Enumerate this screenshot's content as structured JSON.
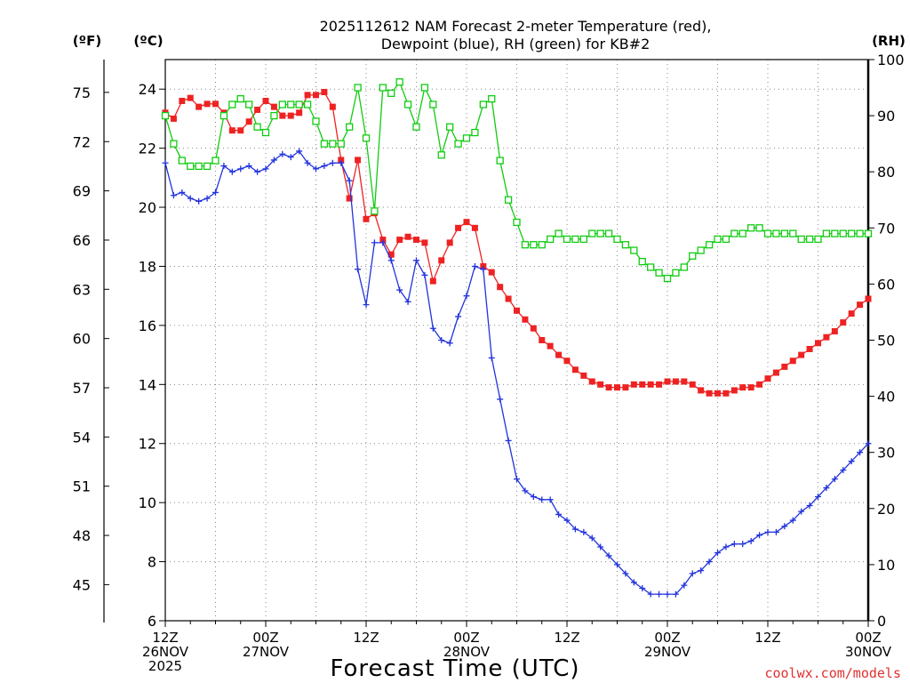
{
  "chart_data": {
    "type": "line",
    "title_line1": "2025112612 NAM Forecast 2-meter Temperature (red),",
    "title_line2": "Dewpoint (blue), RH (green) for KB#2",
    "xlabel": "Forecast Time (UTC)",
    "watermark": "coolwx.com/models",
    "units": {
      "f": "(ºF)",
      "c": "(ºC)",
      "rh": "(RH)"
    },
    "x_hours_range": [
      0,
      84
    ],
    "x_ticks": [
      {
        "h": 0,
        "l1": "12Z",
        "l2": "26NOV",
        "l3": "2025"
      },
      {
        "h": 12,
        "l1": "00Z",
        "l2": "27NOV",
        "l3": ""
      },
      {
        "h": 24,
        "l1": "12Z",
        "l2": "",
        "l3": ""
      },
      {
        "h": 36,
        "l1": "00Z",
        "l2": "28NOV",
        "l3": ""
      },
      {
        "h": 48,
        "l1": "12Z",
        "l2": "",
        "l3": ""
      },
      {
        "h": 60,
        "l1": "00Z",
        "l2": "29NOV",
        "l3": ""
      },
      {
        "h": 72,
        "l1": "12Z",
        "l2": "",
        "l3": ""
      },
      {
        "h": 84,
        "l1": "00Z",
        "l2": "30NOV",
        "l3": ""
      }
    ],
    "c_range": [
      6,
      25
    ],
    "c_ticks": [
      6,
      8,
      10,
      12,
      14,
      16,
      18,
      20,
      22,
      24
    ],
    "f_ticks": [
      45,
      48,
      51,
      54,
      57,
      60,
      63,
      66,
      69,
      72,
      75
    ],
    "rh_range": [
      0,
      100
    ],
    "rh_ticks": [
      0,
      10,
      20,
      30,
      40,
      50,
      60,
      70,
      80,
      90,
      100
    ],
    "colors": {
      "temp": "#ee2222",
      "dew": "#2233dd",
      "rh": "#11cc11",
      "grid": "#888888"
    },
    "series": [
      {
        "name": "Temperature",
        "unit": "C",
        "marker": "square-filled",
        "x": [
          0,
          1,
          2,
          3,
          4,
          5,
          6,
          7,
          8,
          9,
          10,
          11,
          12,
          13,
          14,
          15,
          16,
          17,
          18,
          19,
          20,
          21,
          22,
          23,
          24,
          25,
          26,
          27,
          28,
          29,
          30,
          31,
          32,
          33,
          34,
          35,
          36,
          37,
          38,
          39,
          40,
          41,
          42,
          43,
          44,
          45,
          46,
          47,
          48,
          49,
          50,
          51,
          52,
          53,
          54,
          55,
          56,
          57,
          58,
          59,
          60,
          61,
          62,
          63,
          64,
          65,
          66,
          67,
          68,
          69,
          70,
          71,
          72,
          73,
          74,
          75,
          76,
          77,
          78,
          79,
          80,
          81,
          82,
          83,
          84
        ],
        "values": [
          23.2,
          23.0,
          23.6,
          23.7,
          23.4,
          23.5,
          23.5,
          23.2,
          22.6,
          22.6,
          22.9,
          23.3,
          23.6,
          23.4,
          23.1,
          23.1,
          23.2,
          23.8,
          23.8,
          23.9,
          23.4,
          21.6,
          20.3,
          21.6,
          19.6,
          19.8,
          18.9,
          18.4,
          18.9,
          19.0,
          18.9,
          18.8,
          17.5,
          18.2,
          18.8,
          19.3,
          19.5,
          19.3,
          18.0,
          17.8,
          17.3,
          16.9,
          16.5,
          16.2,
          15.9,
          15.5,
          15.3,
          15.0,
          14.8,
          14.5,
          14.3,
          14.1,
          14.0,
          13.9,
          13.9,
          13.9,
          14.0,
          14.0,
          14.0,
          14.0,
          14.1,
          14.1,
          14.1,
          14.0,
          13.8,
          13.7,
          13.7,
          13.7,
          13.8,
          13.9,
          13.9,
          14.0,
          14.2,
          14.4,
          14.6,
          14.8,
          15.0,
          15.2,
          15.4,
          15.6,
          15.8,
          16.1,
          16.4,
          16.7,
          16.9
        ]
      },
      {
        "name": "Dewpoint",
        "unit": "C",
        "marker": "plus",
        "x": [
          0,
          1,
          2,
          3,
          4,
          5,
          6,
          7,
          8,
          9,
          10,
          11,
          12,
          13,
          14,
          15,
          16,
          17,
          18,
          19,
          20,
          21,
          22,
          23,
          24,
          25,
          26,
          27,
          28,
          29,
          30,
          31,
          32,
          33,
          34,
          35,
          36,
          37,
          38,
          39,
          40,
          41,
          42,
          43,
          44,
          45,
          46,
          47,
          48,
          49,
          50,
          51,
          52,
          53,
          54,
          55,
          56,
          57,
          58,
          59,
          60,
          61,
          62,
          63,
          64,
          65,
          66,
          67,
          68,
          69,
          70,
          71,
          72,
          73,
          74,
          75,
          76,
          77,
          78,
          79,
          80,
          81,
          82,
          83,
          84
        ],
        "values": [
          21.5,
          20.4,
          20.5,
          20.3,
          20.2,
          20.3,
          20.5,
          21.4,
          21.2,
          21.3,
          21.4,
          21.2,
          21.3,
          21.6,
          21.8,
          21.7,
          21.9,
          21.5,
          21.3,
          21.4,
          21.5,
          21.5,
          20.9,
          17.9,
          16.7,
          18.8,
          18.8,
          18.2,
          17.2,
          16.8,
          18.2,
          17.7,
          15.9,
          15.5,
          15.4,
          16.3,
          17.0,
          18.0,
          17.9,
          14.9,
          13.5,
          12.1,
          10.8,
          10.4,
          10.2,
          10.1,
          10.1,
          9.6,
          9.4,
          9.1,
          9.0,
          8.8,
          8.5,
          8.2,
          7.9,
          7.6,
          7.3,
          7.1,
          6.9,
          6.9,
          6.9,
          6.9,
          7.2,
          7.6,
          7.7,
          8.0,
          8.3,
          8.5,
          8.6,
          8.6,
          8.7,
          8.9,
          9.0,
          9.0,
          9.2,
          9.4,
          9.7,
          9.9,
          10.2,
          10.5,
          10.8,
          11.1,
          11.4,
          11.7,
          12.0
        ]
      },
      {
        "name": "Relative Humidity",
        "unit": "%",
        "marker": "square-open",
        "x": [
          0,
          1,
          2,
          3,
          4,
          5,
          6,
          7,
          8,
          9,
          10,
          11,
          12,
          13,
          14,
          15,
          16,
          17,
          18,
          19,
          20,
          21,
          22,
          23,
          24,
          25,
          26,
          27,
          28,
          29,
          30,
          31,
          32,
          33,
          34,
          35,
          36,
          37,
          38,
          39,
          40,
          41,
          42,
          43,
          44,
          45,
          46,
          47,
          48,
          49,
          50,
          51,
          52,
          53,
          54,
          55,
          56,
          57,
          58,
          59,
          60,
          61,
          62,
          63,
          64,
          65,
          66,
          67,
          68,
          69,
          70,
          71,
          72,
          73,
          74,
          75,
          76,
          77,
          78,
          79,
          80,
          81,
          82,
          83,
          84
        ],
        "values": [
          90,
          85,
          82,
          81,
          81,
          81,
          82,
          90,
          92,
          93,
          92,
          88,
          87,
          90,
          92,
          92,
          92,
          92,
          89,
          85,
          85,
          85,
          88,
          95,
          86,
          73,
          95,
          94,
          96,
          92,
          88,
          95,
          92,
          83,
          88,
          85,
          86,
          87,
          92,
          93,
          82,
          75,
          71,
          67,
          67,
          67,
          68,
          69,
          68,
          68,
          68,
          69,
          69,
          69,
          68,
          67,
          66,
          64,
          63,
          62,
          61,
          62,
          63,
          65,
          66,
          67,
          68,
          68,
          69,
          69,
          70,
          70,
          69,
          69,
          69,
          69,
          68,
          68,
          68,
          69,
          69,
          69,
          69,
          69,
          69
        ]
      }
    ]
  }
}
